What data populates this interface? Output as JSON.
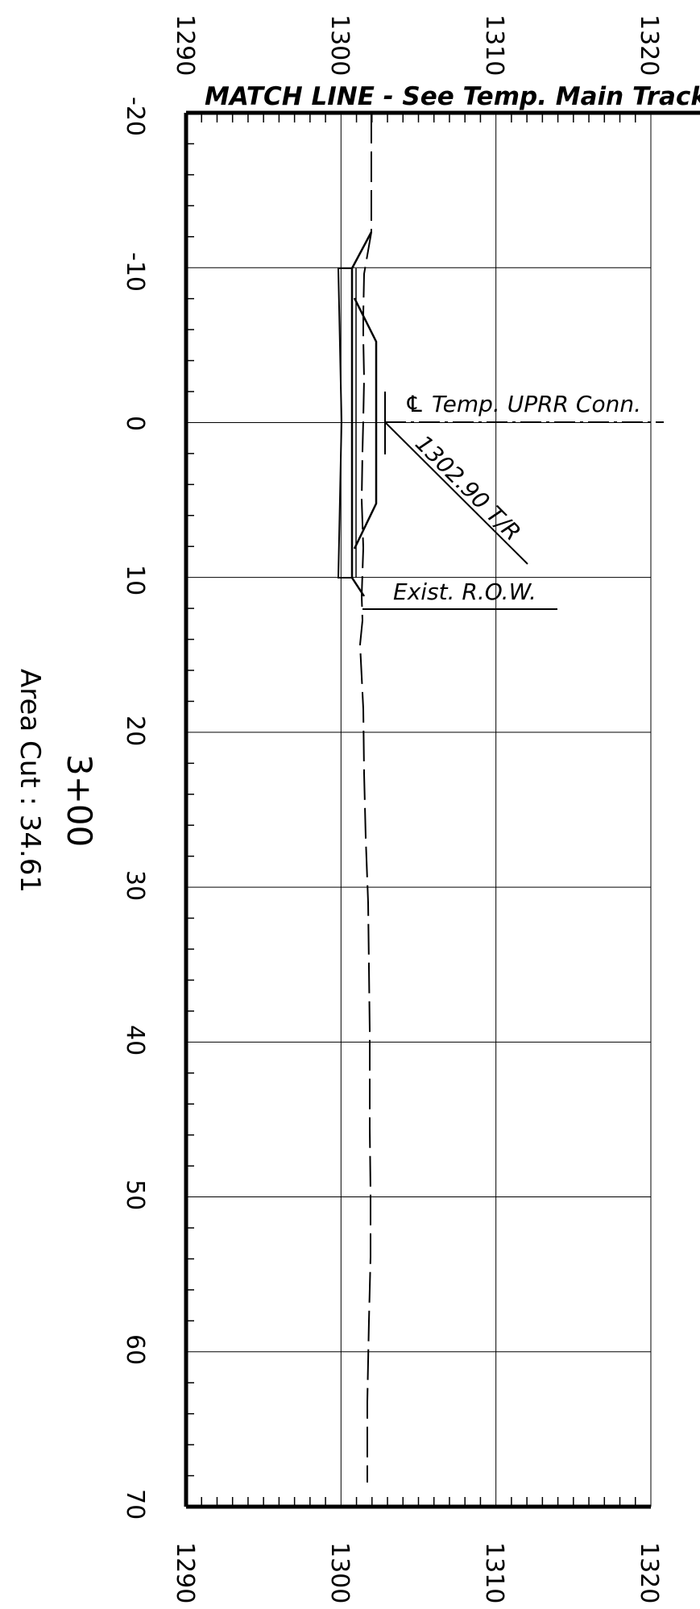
{
  "sheet": {
    "elevation_ticks": [
      "1290",
      "1300",
      "1310",
      "1320"
    ],
    "offset_ticks": [
      "-20",
      "-10",
      "0",
      "10",
      "20",
      "30",
      "40",
      "50",
      "60",
      "70"
    ],
    "match_line": "MATCH LINE  - See Temp. Main Track",
    "centerline_label": "℄ Temp. UPRR  Conn.",
    "top_of_rail_label": "1302.90 T/R",
    "row_label": "Exist. R.O.W.",
    "station": "3+00",
    "area_cut": "Area Cut :  34.61"
  },
  "section_data": {
    "offset_range": [
      -20,
      70
    ],
    "elevation_range": [
      1290,
      1320
    ],
    "top_of_rail_elevation": 1302.9
  }
}
